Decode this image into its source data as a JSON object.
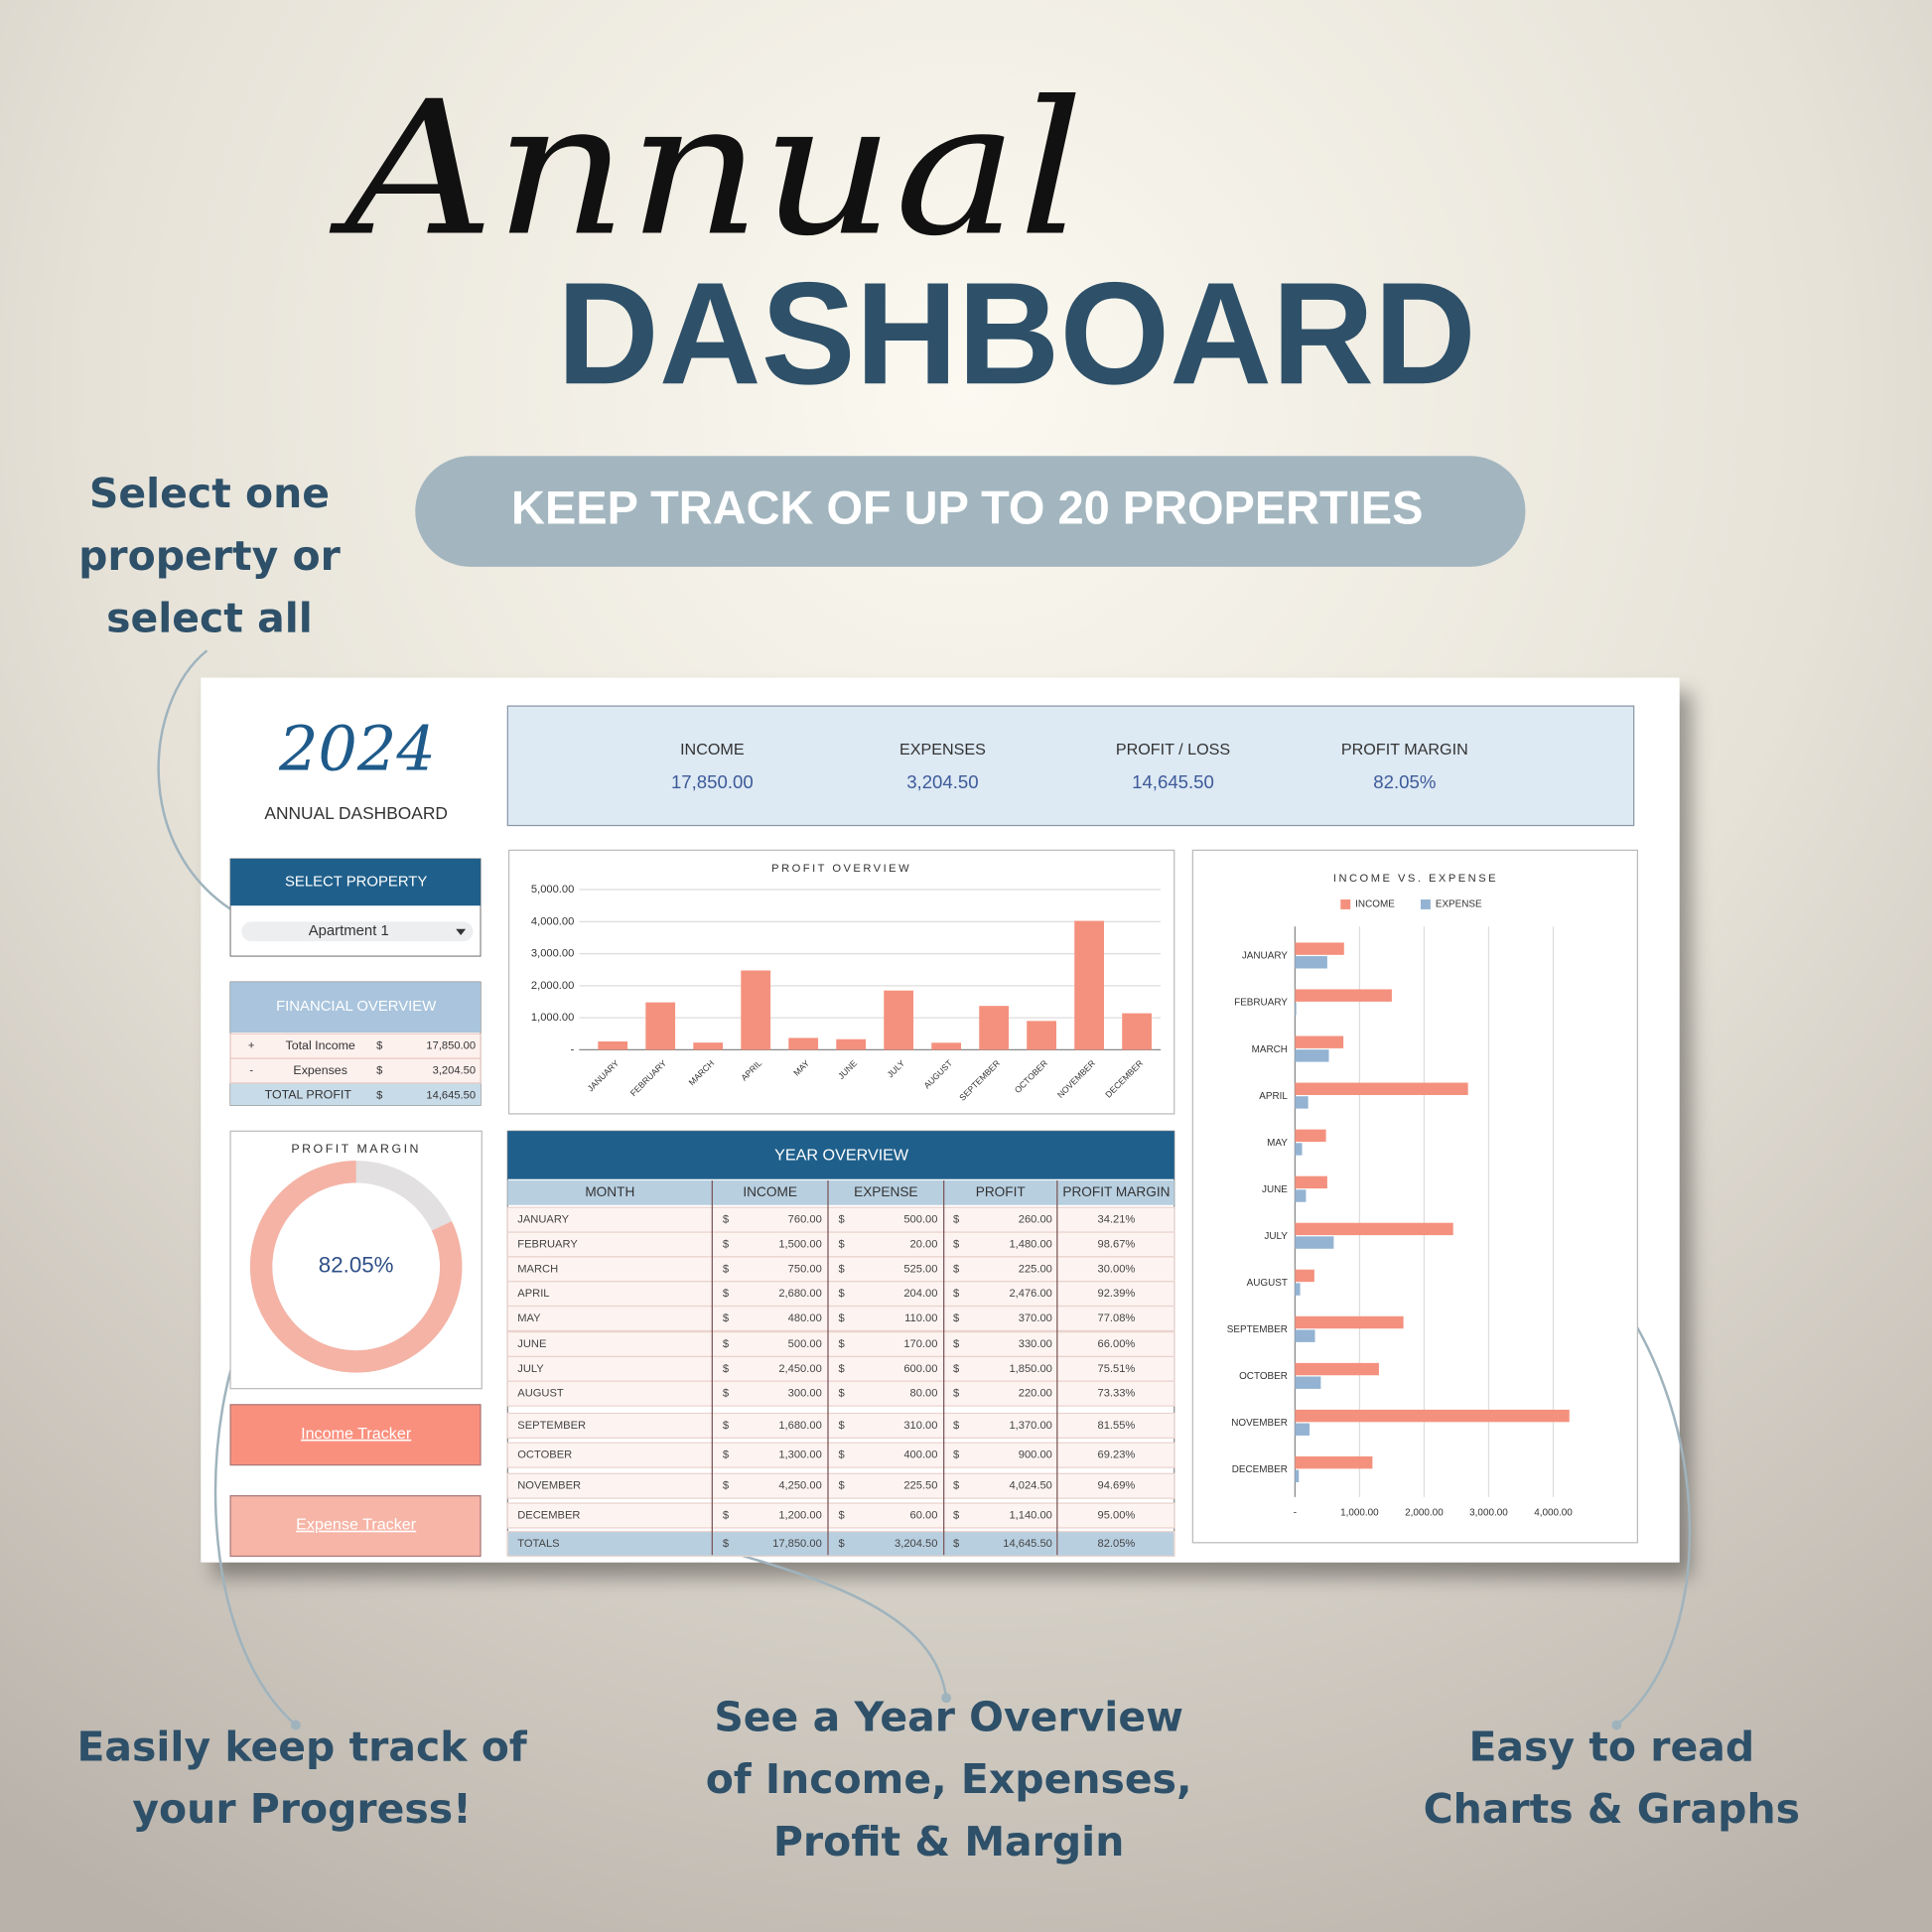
{
  "header": {
    "script_title": "Annual",
    "title": "DASHBOARD",
    "banner": "KEEP TRACK OF UP TO 20 PROPERTIES"
  },
  "callouts": {
    "select": [
      "Select one",
      "property or",
      "select all"
    ],
    "progress": [
      "Easily keep track of",
      "your Progress!"
    ],
    "overview": [
      "See a Year Overview",
      "of Income, Expenses,",
      "Profit & Margin"
    ],
    "charts": [
      "Easy to read",
      "Charts & Graphs"
    ]
  },
  "dashboard": {
    "year": "2024",
    "subtitle": "ANNUAL DASHBOARD",
    "kpis": [
      {
        "label": "INCOME",
        "value": "17,850.00"
      },
      {
        "label": "EXPENSES",
        "value": "3,204.50"
      },
      {
        "label": "PROFIT / LOSS",
        "value": "14,645.50"
      },
      {
        "label": "PROFIT MARGIN",
        "value": "82.05%"
      }
    ],
    "select_property": {
      "title": "SELECT PROPERTY",
      "value": "Apartment 1"
    },
    "financial_overview": {
      "title": "FINANCIAL OVERVIEW",
      "rows": [
        [
          "+",
          "Total Income",
          "$",
          "17,850.00"
        ],
        [
          "-",
          "Expenses",
          "$",
          "3,204.50"
        ],
        [
          "TOTAL PROFIT",
          "$",
          "14,645.50"
        ]
      ]
    },
    "profit_margin": {
      "title": "PROFIT MARGIN",
      "value": 82.05,
      "label": "82.05%"
    },
    "buttons": [
      "Income Tracker",
      "Expense Tracker"
    ],
    "year_overview": {
      "title": "YEAR OVERVIEW",
      "columns": [
        "MONTH",
        "INCOME",
        "EXPENSE",
        "PROFIT",
        "PROFIT MARGIN"
      ],
      "rows": [
        [
          "JANUARY",
          "$",
          "760.00",
          "$",
          "500.00",
          "$",
          "260.00",
          "34.21%"
        ],
        [
          "FEBRUARY",
          "$",
          "1,500.00",
          "$",
          "20.00",
          "$",
          "1,480.00",
          "98.67%"
        ],
        [
          "MARCH",
          "$",
          "750.00",
          "$",
          "525.00",
          "$",
          "225.00",
          "30.00%"
        ],
        [
          "APRIL",
          "$",
          "2,680.00",
          "$",
          "204.00",
          "$",
          "2,476.00",
          "92.39%"
        ],
        [
          "MAY",
          "$",
          "480.00",
          "$",
          "110.00",
          "$",
          "370.00",
          "77.08%"
        ],
        [
          "JUNE",
          "$",
          "500.00",
          "$",
          "170.00",
          "$",
          "330.00",
          "66.00%"
        ],
        [
          "JULY",
          "$",
          "2,450.00",
          "$",
          "600.00",
          "$",
          "1,850.00",
          "75.51%"
        ],
        [
          "AUGUST",
          "$",
          "300.00",
          "$",
          "80.00",
          "$",
          "220.00",
          "73.33%"
        ],
        [
          "SEPTEMBER",
          "$",
          "1,680.00",
          "$",
          "310.00",
          "$",
          "1,370.00",
          "81.55%"
        ],
        [
          "OCTOBER",
          "$",
          "1,300.00",
          "$",
          "400.00",
          "$",
          "900.00",
          "69.23%"
        ],
        [
          "NOVEMBER",
          "$",
          "4,250.00",
          "$",
          "225.50",
          "$",
          "4,024.50",
          "94.69%"
        ],
        [
          "DECEMBER",
          "$",
          "1,200.00",
          "$",
          "60.00",
          "$",
          "1,140.00",
          "95.00%"
        ]
      ],
      "totals": [
        "TOTALS",
        "$",
        "17,850.00",
        "$",
        "3,204.50",
        "$",
        "14,645.50",
        "82.05%"
      ]
    }
  },
  "profit_overview": {
    "type": "bar",
    "title": "PROFIT OVERVIEW",
    "categories": [
      "JANUARY",
      "FEBRUARY",
      "MARCH",
      "APRIL",
      "MAY",
      "JUNE",
      "JULY",
      "AUGUST",
      "SEPTEMBER",
      "OCTOBER",
      "NOVEMBER",
      "DECEMBER"
    ],
    "values": [
      260,
      1480,
      225,
      2476,
      370,
      330,
      1850,
      220,
      1370,
      900,
      4024.5,
      1140
    ],
    "color": "#f4917e",
    "ylim": [
      0,
      5000
    ],
    "yticks": [
      {
        "value": 0,
        "label": "-"
      },
      {
        "value": 1000,
        "label": "1,000.00"
      },
      {
        "value": 2000,
        "label": "2,000.00"
      },
      {
        "value": 3000,
        "label": "3,000.00"
      },
      {
        "value": 4000,
        "label": "4,000.00"
      },
      {
        "value": 5000,
        "label": "5,000.00"
      }
    ],
    "grid": true
  },
  "income_vs_expense": {
    "type": "hbar",
    "title": "INCOME VS. EXPENSE",
    "categories": [
      "JANUARY",
      "FEBRUARY",
      "MARCH",
      "APRIL",
      "MAY",
      "JUNE",
      "JULY",
      "AUGUST",
      "SEPTEMBER",
      "OCTOBER",
      "NOVEMBER",
      "DECEMBER"
    ],
    "series": [
      {
        "name": "INCOME",
        "color": "#f4917e",
        "values": [
          760,
          1500,
          750,
          2680,
          480,
          500,
          2450,
          300,
          1680,
          1300,
          4250,
          1200
        ]
      },
      {
        "name": "EXPENSE",
        "color": "#94b3d2",
        "values": [
          500,
          20,
          525,
          204,
          110,
          170,
          600,
          80,
          310,
          400,
          225.5,
          60
        ]
      }
    ],
    "xlim": [
      0,
      5000
    ],
    "xticks": [
      {
        "value": 0,
        "label": "-"
      },
      {
        "value": 1000,
        "label": "1,000.00"
      },
      {
        "value": 2000,
        "label": "2,000.00"
      },
      {
        "value": 3000,
        "label": "3,000.00"
      },
      {
        "value": 4000,
        "label": "4,000.00"
      }
    ],
    "grid": true
  }
}
